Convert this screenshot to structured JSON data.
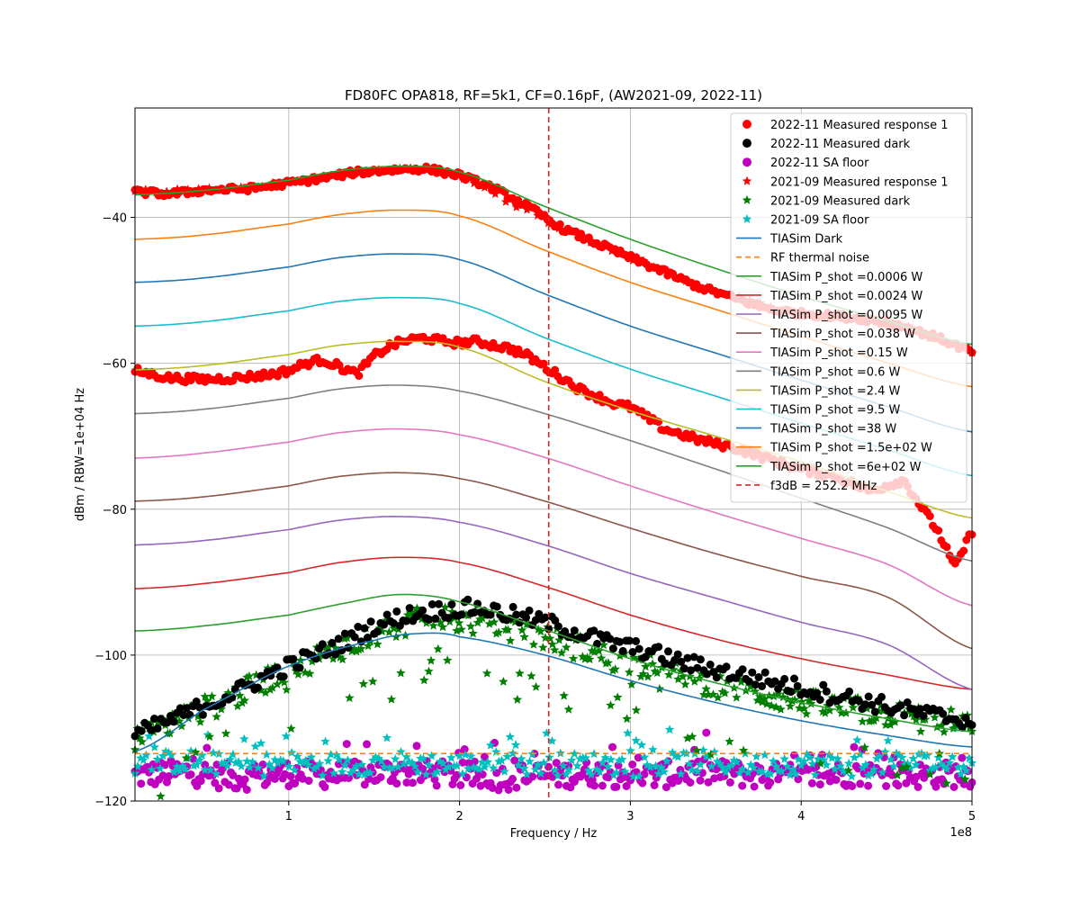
{
  "chart_data": {
    "type": "scatter",
    "title": "FD80FC OPA818, RF=5k1, CF=0.16pF, (AW2021-09, 2022-11)",
    "xlabel": "Frequency / Hz",
    "ylabel": "dBm / RBW=1e+04 Hz",
    "x_scale_label": "1e8",
    "xlim": [
      0.1,
      5.0
    ],
    "ylim": [
      -120,
      -25
    ],
    "x_ticks": [
      1,
      2,
      3,
      4,
      5
    ],
    "y_ticks": [
      -40,
      -60,
      -80,
      -100,
      -120
    ],
    "grid": true,
    "legend_position": "top-right",
    "vline": {
      "name": "f3dB = 252.2 MHz",
      "x": 2.522,
      "color": "#d62728"
    },
    "thermal_noise": {
      "name": "RF thermal noise",
      "y": -113.5,
      "color": "#ff7f0e"
    },
    "measured": [
      {
        "name": "2022-11 Measured response 1",
        "color": "#ff0000",
        "marker": "circle",
        "x": [
          0.1,
          0.3,
          0.5,
          0.8,
          1.0,
          1.2,
          1.4,
          1.6,
          1.8,
          2.0,
          2.2,
          2.4,
          2.6,
          2.8,
          3.0,
          3.2,
          3.4,
          3.6,
          3.8,
          4.0,
          4.2,
          4.4,
          4.6,
          4.8,
          5.0
        ],
        "y": [
          -36.5,
          -36.8,
          -36.3,
          -36.0,
          -35.3,
          -34.6,
          -33.8,
          -33.5,
          -33.3,
          -34.2,
          -36.0,
          -38.5,
          -41.5,
          -43.5,
          -45.5,
          -47.5,
          -49.5,
          -51.0,
          -52.5,
          -53.2,
          -53.5,
          -54.0,
          -55.0,
          -56.5,
          -58.5
        ]
      },
      {
        "name": "2022-11 Measured response 1 (lower trace)",
        "color": "#ff0000",
        "marker": "circle",
        "x": [
          0.1,
          0.3,
          0.5,
          0.7,
          0.9,
          1.0,
          1.1,
          1.2,
          1.3,
          1.4,
          1.5,
          1.6,
          1.7,
          1.8,
          1.9,
          2.0,
          2.1,
          2.2,
          2.3,
          2.4,
          2.5,
          2.6,
          2.7,
          2.8,
          2.9,
          3.0,
          3.2,
          3.4,
          3.6,
          3.8,
          4.0,
          4.2,
          4.4,
          4.6,
          4.8,
          4.9,
          5.0
        ],
        "y": [
          -61.0,
          -62.0,
          -62.2,
          -62.0,
          -61.5,
          -61.0,
          -60.0,
          -59.5,
          -60.5,
          -61.5,
          -59.0,
          -57.5,
          -56.8,
          -56.5,
          -57.0,
          -57.2,
          -57.0,
          -57.5,
          -58.0,
          -59.0,
          -60.5,
          -62.0,
          -63.5,
          -64.5,
          -65.5,
          -66.0,
          -69.0,
          -70.5,
          -71.5,
          -73.0,
          -74.5,
          -75.5,
          -77.5,
          -76.0,
          -83.0,
          -88.0,
          -83.0
        ]
      },
      {
        "name": "2022-11 Measured dark",
        "color": "#000000",
        "marker": "circle",
        "x": [
          0.1,
          0.3,
          0.5,
          0.7,
          0.9,
          1.1,
          1.3,
          1.5,
          1.7,
          1.9,
          2.1,
          2.3,
          2.5,
          2.7,
          2.9,
          3.1,
          3.3,
          3.5,
          3.7,
          3.9,
          4.1,
          4.3,
          4.5,
          4.7,
          5.0
        ],
        "y": [
          -111.0,
          -109.0,
          -107.0,
          -105.0,
          -102.5,
          -100.5,
          -98.5,
          -96.0,
          -94.5,
          -93.8,
          -93.5,
          -94.5,
          -95.5,
          -97.0,
          -98.5,
          -99.5,
          -101.0,
          -102.0,
          -103.0,
          -104.0,
          -105.0,
          -106.0,
          -107.0,
          -108.0,
          -109.0
        ]
      },
      {
        "name": "2022-11 SA floor",
        "color": "#bf00bf",
        "marker": "circle",
        "x": [
          0.1,
          0.4,
          0.7,
          1.0,
          1.3,
          1.6,
          1.9,
          2.2,
          2.5,
          2.8,
          3.1,
          3.4,
          3.7,
          4.0,
          4.3,
          4.6,
          5.0
        ],
        "y": [
          -116.5,
          -116.0,
          -116.8,
          -116.2,
          -116.5,
          -116.0,
          -116.3,
          -116.8,
          -116.5,
          -116.2,
          -116.6,
          -116.0,
          -116.4,
          -116.7,
          -116.2,
          -116.5,
          -116.3
        ]
      },
      {
        "name": "2021-09 Measured response 1",
        "color": "#ff0000",
        "marker": "star",
        "x": [
          0.1,
          0.5,
          1.0,
          1.5,
          1.7,
          2.0,
          2.5,
          3.0,
          3.5,
          4.0,
          4.5,
          5.0
        ],
        "y": [
          -36.5,
          -36.3,
          -35.3,
          -33.6,
          -33.3,
          -34.2,
          -40.5,
          -45.5,
          -50.2,
          -53.2,
          -54.0,
          -58.5
        ]
      },
      {
        "name": "2021-09 Measured dark",
        "color": "#007f00",
        "marker": "star",
        "x": [
          0.1,
          0.3,
          0.5,
          0.7,
          0.9,
          1.1,
          1.3,
          1.5,
          1.7,
          1.9,
          2.1,
          2.3,
          2.5,
          2.7,
          2.9,
          3.1,
          3.3,
          3.5,
          3.7,
          3.9,
          4.1,
          4.3,
          4.5,
          4.7,
          5.0
        ],
        "y": [
          -111.5,
          -109.5,
          -107.5,
          -105.5,
          -103.0,
          -101.0,
          -99.0,
          -97.0,
          -95.5,
          -95.0,
          -95.5,
          -96.5,
          -97.5,
          -99.0,
          -100.5,
          -101.5,
          -103.0,
          -104.0,
          -105.0,
          -106.0,
          -106.8,
          -107.5,
          -108.0,
          -108.8,
          -109.5
        ]
      },
      {
        "name": "2021-09 SA floor",
        "color": "#00bfbf",
        "marker": "star",
        "x": [
          0.1,
          0.4,
          0.7,
          1.0,
          1.3,
          1.6,
          1.9,
          2.2,
          2.5,
          2.8,
          3.1,
          3.4,
          3.7,
          4.0,
          4.3,
          4.6,
          5.0
        ],
        "y": [
          -115.0,
          -114.5,
          -115.2,
          -114.8,
          -115.0,
          -114.6,
          -115.1,
          -114.7,
          -115.0,
          -114.9,
          -115.2,
          -114.6,
          -115.0,
          -114.8,
          -115.1,
          -114.7,
          -115.0
        ]
      }
    ],
    "tiasim": [
      {
        "name": "TIASim Dark",
        "color": "#1f77b4",
        "x": [
          0.1,
          0.5,
          1.0,
          1.5,
          1.8,
          2.0,
          2.5,
          3.0,
          3.5,
          4.0,
          4.5,
          5.0
        ],
        "y": [
          -113.2,
          -107.5,
          -101.5,
          -98.0,
          -97.0,
          -97.5,
          -100.0,
          -103.5,
          -106.5,
          -109.0,
          -111.0,
          -112.6
        ]
      },
      {
        "name": "TIASim P_shot =0.0006 W",
        "color": "#2ca02c",
        "x": [
          0.1,
          0.5,
          1.0,
          1.3,
          1.65,
          2.0,
          2.5,
          3.0,
          3.5,
          4.0,
          4.5,
          5.0
        ],
        "y": [
          -96.7,
          -96.0,
          -94.5,
          -93.0,
          -91.7,
          -92.7,
          -96.5,
          -100.5,
          -103.8,
          -106.5,
          -108.7,
          -110.5
        ]
      },
      {
        "name": "TIASim P_shot =0.0024 W",
        "color": "#d62728",
        "x": [
          0.1,
          0.5,
          1.0,
          1.3,
          1.65,
          2.0,
          2.5,
          3.0,
          3.5,
          4.0,
          4.5,
          5.0
        ],
        "y": [
          -90.9,
          -90.2,
          -88.7,
          -87.3,
          -86.6,
          -87.3,
          -90.6,
          -94.5,
          -97.8,
          -100.5,
          -102.7,
          -104.7
        ]
      },
      {
        "name": "TIASim P_shot =0.0095 W",
        "color": "#9467bd",
        "x": [
          0.1,
          0.5,
          1.0,
          1.3,
          1.65,
          2.0,
          2.5,
          3.0,
          3.5,
          4.0,
          4.5,
          5.0
        ],
        "y": [
          -84.9,
          -84.3,
          -82.8,
          -81.5,
          -81.0,
          -81.8,
          -84.9,
          -88.8,
          -92.2,
          -95.5,
          -98.5,
          -104.7
        ]
      },
      {
        "name": "TIASim P_shot =0.038 W",
        "color": "#8c564b",
        "x": [
          0.1,
          0.5,
          1.0,
          1.3,
          1.65,
          2.0,
          2.5,
          3.0,
          3.5,
          4.0,
          4.5,
          5.0
        ],
        "y": [
          -78.9,
          -78.3,
          -76.8,
          -75.5,
          -75.0,
          -75.8,
          -78.9,
          -82.6,
          -86.1,
          -89.2,
          -92.0,
          -99.1
        ]
      },
      {
        "name": "TIASim P_shot =0.15 W",
        "color": "#e377c2",
        "x": [
          0.1,
          0.5,
          1.0,
          1.3,
          1.65,
          2.0,
          2.5,
          3.0,
          3.5,
          4.0,
          4.5,
          5.0
        ],
        "y": [
          -73.0,
          -72.3,
          -70.8,
          -69.5,
          -69.0,
          -69.8,
          -72.9,
          -76.8,
          -80.5,
          -84.0,
          -87.5,
          -93.2
        ]
      },
      {
        "name": "TIASim P_shot =0.6 W",
        "color": "#7f7f7f",
        "x": [
          0.1,
          0.5,
          1.0,
          1.3,
          1.65,
          2.0,
          2.5,
          3.0,
          3.5,
          4.0,
          4.5,
          5.0
        ],
        "y": [
          -66.9,
          -66.3,
          -64.8,
          -63.5,
          -63.0,
          -63.8,
          -66.9,
          -70.6,
          -74.5,
          -78.5,
          -82.5,
          -87.1
        ]
      },
      {
        "name": "TIASim P_shot =2.4 W",
        "color": "#bcbd22",
        "x": [
          0.1,
          0.5,
          1.0,
          1.3,
          1.65,
          2.0,
          2.5,
          3.0,
          3.5,
          4.0,
          4.5,
          5.0
        ],
        "y": [
          -60.9,
          -60.3,
          -58.8,
          -57.5,
          -57.0,
          -57.8,
          -62.5,
          -66.5,
          -70.0,
          -73.5,
          -77.5,
          -81.2
        ]
      },
      {
        "name": "TIASim P_shot =9.5 W",
        "color": "#17becf",
        "x": [
          0.1,
          0.5,
          1.0,
          1.3,
          1.65,
          2.0,
          2.5,
          3.0,
          3.5,
          4.0,
          4.5,
          5.0
        ],
        "y": [
          -54.9,
          -54.3,
          -52.8,
          -51.5,
          -51.0,
          -51.8,
          -56.5,
          -60.8,
          -64.5,
          -68.2,
          -71.8,
          -75.4
        ]
      },
      {
        "name": "TIASim P_shot =38 W",
        "color": "#1f77b4",
        "x": [
          0.1,
          0.5,
          1.0,
          1.3,
          1.65,
          2.0,
          2.5,
          3.0,
          3.5,
          4.0,
          4.5,
          5.0
        ],
        "y": [
          -48.9,
          -48.3,
          -46.8,
          -45.5,
          -45.0,
          -45.8,
          -50.5,
          -54.9,
          -58.6,
          -62.3,
          -65.9,
          -69.4
        ]
      },
      {
        "name": "TIASim P_shot =1.5e+02 W",
        "color": "#ff7f0e",
        "x": [
          0.1,
          0.5,
          1.0,
          1.3,
          1.65,
          2.0,
          2.5,
          3.0,
          3.5,
          4.0,
          4.5,
          5.0
        ],
        "y": [
          -43.0,
          -42.4,
          -40.9,
          -39.6,
          -39.0,
          -39.8,
          -44.5,
          -48.9,
          -52.6,
          -56.3,
          -59.9,
          -63.2
        ]
      },
      {
        "name": "TIASim P_shot =6e+02 W",
        "color": "#2ca02c",
        "x": [
          0.1,
          0.5,
          1.0,
          1.3,
          1.65,
          2.0,
          2.5,
          3.0,
          3.5,
          4.0,
          4.5,
          5.0
        ],
        "y": [
          -36.9,
          -36.3,
          -34.9,
          -33.6,
          -33.0,
          -33.8,
          -38.5,
          -43.0,
          -47.0,
          -50.8,
          -54.2,
          -57.4
        ]
      }
    ],
    "legend": [
      {
        "label": "2022-11 Measured response 1",
        "color": "#ff0000",
        "marker": "circle"
      },
      {
        "label": "2022-11 Measured dark",
        "color": "#000000",
        "marker": "circle"
      },
      {
        "label": "2022-11 SA floor",
        "color": "#bf00bf",
        "marker": "circle"
      },
      {
        "label": "2021-09 Measured response 1",
        "color": "#ff0000",
        "marker": "star"
      },
      {
        "label": "2021-09 Measured dark",
        "color": "#007f00",
        "marker": "star"
      },
      {
        "label": "2021-09 SA floor",
        "color": "#00bfbf",
        "marker": "star"
      },
      {
        "label": "TIASim Dark",
        "color": "#1f77b4",
        "marker": "line"
      },
      {
        "label": "RF thermal noise",
        "color": "#ff7f0e",
        "marker": "dashed"
      },
      {
        "label": "TIASim P_shot =0.0006 W",
        "color": "#2ca02c",
        "marker": "line"
      },
      {
        "label": "TIASim P_shot =0.0024 W",
        "color": "#d62728",
        "marker": "line"
      },
      {
        "label": "TIASim P_shot =0.0095 W",
        "color": "#9467bd",
        "marker": "line"
      },
      {
        "label": "TIASim P_shot =0.038 W",
        "color": "#8c564b",
        "marker": "line"
      },
      {
        "label": "TIASim P_shot =0.15 W",
        "color": "#e377c2",
        "marker": "line"
      },
      {
        "label": "TIASim P_shot =0.6 W",
        "color": "#7f7f7f",
        "marker": "line"
      },
      {
        "label": "TIASim P_shot =2.4 W",
        "color": "#bcbd22",
        "marker": "line"
      },
      {
        "label": "TIASim P_shot =9.5 W",
        "color": "#17becf",
        "marker": "line"
      },
      {
        "label": "TIASim P_shot =38 W",
        "color": "#1f77b4",
        "marker": "line"
      },
      {
        "label": "TIASim P_shot =1.5e+02 W",
        "color": "#ff7f0e",
        "marker": "line"
      },
      {
        "label": "TIASim P_shot =6e+02 W",
        "color": "#2ca02c",
        "marker": "line"
      },
      {
        "label": "f3dB = 252.2 MHz",
        "color": "#d62728",
        "marker": "dashed"
      }
    ]
  }
}
